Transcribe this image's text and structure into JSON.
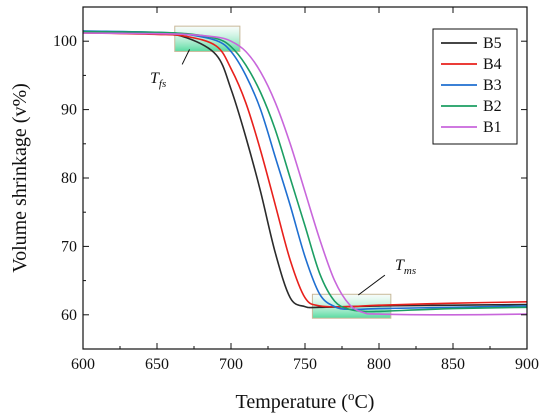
{
  "chart_data": {
    "type": "line",
    "xlabel": {
      "main": "Temperature (",
      "sup": "o",
      "tail": "C)"
    },
    "ylabel": "Volume shrinkage (v%)",
    "xlim": [
      600,
      900
    ],
    "ylim": [
      55,
      105
    ],
    "xticks": [
      "600",
      "650",
      "700",
      "750",
      "800",
      "850",
      "900"
    ],
    "yticks": [
      "60",
      "70",
      "80",
      "90",
      "100"
    ],
    "grid": false,
    "legend_position": "top-right",
    "series": [
      {
        "name": "B5",
        "color": "#2b2b2b",
        "x": [
          600,
          650,
          670,
          690,
          700,
          710,
          720,
          730,
          740,
          750,
          760,
          800,
          850,
          900
        ],
        "y": [
          101.3,
          101.1,
          100.5,
          98,
          93,
          86,
          78,
          69,
          62.5,
          61.2,
          61.1,
          61.3,
          61.4,
          61.5
        ]
      },
      {
        "name": "B4",
        "color": "#e8201c",
        "x": [
          600,
          650,
          670,
          690,
          700,
          710,
          720,
          730,
          740,
          750,
          760,
          780,
          800,
          850,
          900
        ],
        "y": [
          101.2,
          101.0,
          100.7,
          99.3,
          96,
          91,
          84,
          76,
          68,
          62.5,
          61.3,
          61.2,
          61.4,
          61.7,
          61.9
        ]
      },
      {
        "name": "B3",
        "color": "#1f6fd1",
        "x": [
          600,
          650,
          670,
          690,
          700,
          710,
          720,
          730,
          740,
          750,
          760,
          770,
          780,
          800,
          850,
          900
        ],
        "y": [
          101.5,
          101.3,
          101.0,
          100.1,
          98.5,
          95,
          90,
          83,
          76,
          68.5,
          63,
          61.2,
          60.8,
          60.9,
          61.1,
          61.3
        ]
      },
      {
        "name": "B2",
        "color": "#1c9e63",
        "x": [
          600,
          650,
          670,
          690,
          700,
          710,
          720,
          730,
          740,
          750,
          760,
          770,
          780,
          790,
          800,
          850,
          900
        ],
        "y": [
          101.4,
          101.3,
          101.1,
          100.4,
          99.2,
          96.5,
          92.5,
          87,
          80,
          73,
          66,
          62,
          60.8,
          60.5,
          60.5,
          60.9,
          61.1
        ]
      },
      {
        "name": "B1",
        "color": "#c866db",
        "x": [
          600,
          650,
          670,
          690,
          700,
          710,
          720,
          730,
          740,
          750,
          760,
          770,
          780,
          790,
          800,
          850,
          900
        ],
        "y": [
          101.2,
          101.1,
          101.0,
          100.6,
          100.0,
          98.5,
          95.5,
          91,
          85,
          78,
          71,
          65,
          61.5,
          60.3,
          60.1,
          60.0,
          60.1
        ]
      }
    ],
    "annotations": [
      {
        "label": "T",
        "sub": "fs",
        "box_x": [
          662,
          706
        ],
        "box_y": [
          98.5,
          102.2
        ],
        "box_color": "#4fd6a0"
      },
      {
        "label": "T",
        "sub": "ms",
        "box_x": [
          755,
          808
        ],
        "box_y": [
          59.5,
          63.0
        ],
        "box_color": "#4fd6a0"
      }
    ]
  }
}
